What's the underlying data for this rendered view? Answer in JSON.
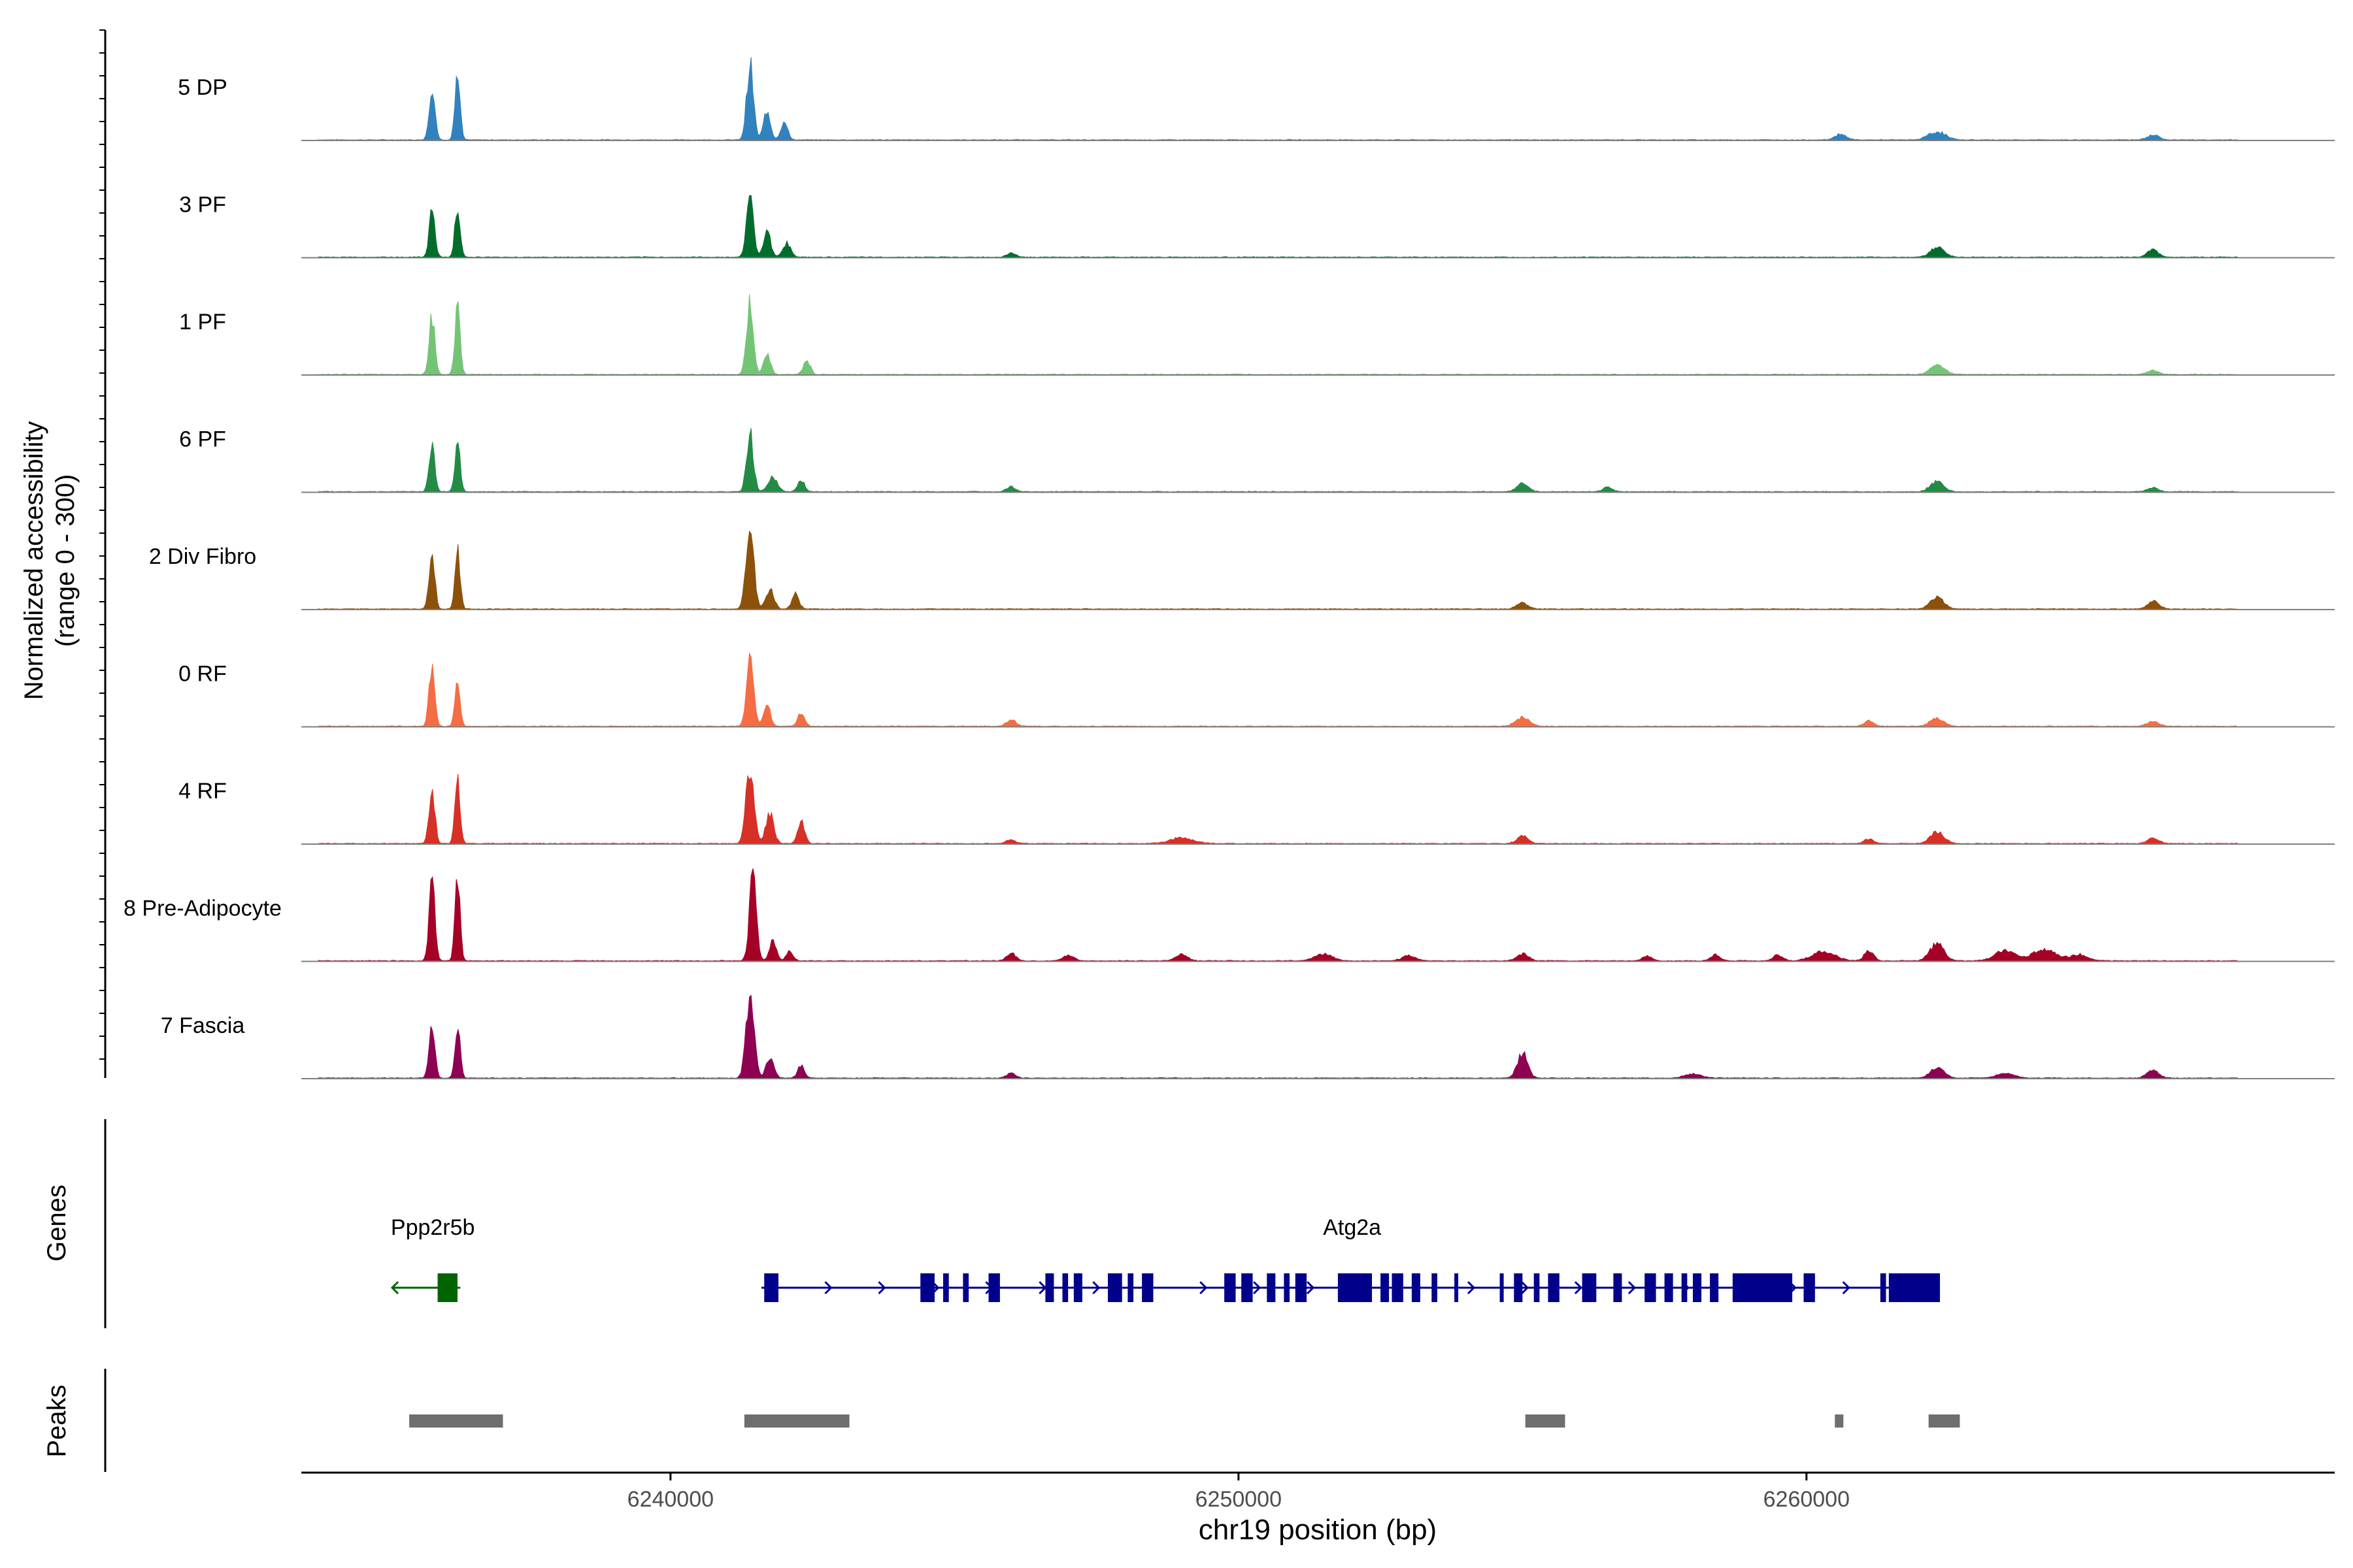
{
  "chart_data": {
    "type": "area",
    "title": "",
    "chromosome": "chr19",
    "xlabel": "chr19 position (bp)",
    "ylabel_line1": "Normalized accessibility",
    "ylabel_line2": "(range 0 - 300)",
    "y_range": [
      0,
      300
    ],
    "x_range": [
      6233500,
      6269300
    ],
    "x_ticks": [
      6240000,
      6250000,
      6260000
    ],
    "x_tick_labels": [
      "6240000",
      "6250000",
      "6260000"
    ],
    "genes_label": "Genes",
    "peaks_label": "Peaks",
    "colors": {
      "axis": "#000000",
      "baseline": "#7f7f7f",
      "peak_bar": "#6e6e6e",
      "gene_minus": "#006400",
      "gene_plus": "#00008b"
    },
    "tracks": [
      {
        "name": "5 DP",
        "color": "#3182bd",
        "peaks": [
          [
            6235800,
            0.55,
            50
          ],
          [
            6236250,
            0.62,
            45
          ],
          [
            6241400,
            0.75,
            60
          ],
          [
            6241700,
            0.3,
            60
          ],
          [
            6242000,
            0.18,
            60
          ],
          [
            6262300,
            0.08,
            150
          ],
          [
            6260600,
            0.06,
            100
          ],
          [
            6266100,
            0.05,
            100
          ]
        ]
      },
      {
        "name": "3 PF",
        "color": "#006d2c",
        "peaks": [
          [
            6235800,
            0.47,
            50
          ],
          [
            6236250,
            0.55,
            45
          ],
          [
            6241400,
            0.66,
            60
          ],
          [
            6241700,
            0.28,
            60
          ],
          [
            6242050,
            0.14,
            70
          ],
          [
            6246000,
            0.04,
            80
          ],
          [
            6262300,
            0.1,
            120
          ],
          [
            6266100,
            0.07,
            100
          ]
        ]
      },
      {
        "name": "1 PF",
        "color": "#74c476",
        "peaks": [
          [
            6235800,
            0.6,
            50
          ],
          [
            6236250,
            0.7,
            45
          ],
          [
            6241400,
            0.7,
            60
          ],
          [
            6241700,
            0.2,
            60
          ],
          [
            6242400,
            0.14,
            60
          ],
          [
            6262300,
            0.1,
            120
          ],
          [
            6266100,
            0.04,
            100
          ]
        ]
      },
      {
        "name": "6 PF",
        "color": "#238b45",
        "peaks": [
          [
            6235800,
            0.45,
            50
          ],
          [
            6236250,
            0.52,
            45
          ],
          [
            6241400,
            0.58,
            60
          ],
          [
            6241800,
            0.15,
            80
          ],
          [
            6242300,
            0.12,
            60
          ],
          [
            6246000,
            0.05,
            80
          ],
          [
            6255000,
            0.08,
            100
          ],
          [
            6256500,
            0.05,
            80
          ],
          [
            6262300,
            0.1,
            120
          ],
          [
            6266100,
            0.04,
            100
          ]
        ]
      },
      {
        "name": "2 Div Fibro",
        "color": "#8c510a",
        "peaks": [
          [
            6235800,
            0.55,
            50
          ],
          [
            6236250,
            0.6,
            45
          ],
          [
            6241400,
            0.75,
            70
          ],
          [
            6241750,
            0.2,
            70
          ],
          [
            6242200,
            0.15,
            60
          ],
          [
            6255000,
            0.06,
            100
          ],
          [
            6262300,
            0.12,
            120
          ],
          [
            6266100,
            0.08,
            100
          ]
        ]
      },
      {
        "name": "0 RF",
        "color": "#f46d43",
        "peaks": [
          [
            6235800,
            0.62,
            50
          ],
          [
            6236250,
            0.48,
            45
          ],
          [
            6241400,
            0.78,
            60
          ],
          [
            6241700,
            0.22,
            60
          ],
          [
            6242300,
            0.14,
            60
          ],
          [
            6246000,
            0.07,
            80
          ],
          [
            6255000,
            0.09,
            120
          ],
          [
            6261100,
            0.06,
            80
          ],
          [
            6262300,
            0.08,
            120
          ],
          [
            6266100,
            0.05,
            100
          ]
        ]
      },
      {
        "name": "4 RF",
        "color": "#d73027",
        "peaks": [
          [
            6235800,
            0.55,
            50
          ],
          [
            6236250,
            0.62,
            45
          ],
          [
            6241400,
            0.75,
            70
          ],
          [
            6241750,
            0.3,
            70
          ],
          [
            6242300,
            0.22,
            60
          ],
          [
            6246000,
            0.04,
            80
          ],
          [
            6249000,
            0.06,
            200
          ],
          [
            6255000,
            0.07,
            100
          ],
          [
            6261100,
            0.05,
            80
          ],
          [
            6262300,
            0.12,
            120
          ],
          [
            6266100,
            0.05,
            100
          ]
        ]
      },
      {
        "name": "8 Pre-Adipocyte",
        "color": "#a50026",
        "peaks": [
          [
            6235800,
            0.8,
            50
          ],
          [
            6236250,
            0.8,
            45
          ],
          [
            6241450,
            0.9,
            60
          ],
          [
            6241800,
            0.2,
            60
          ],
          [
            6242100,
            0.1,
            60
          ],
          [
            6246000,
            0.08,
            80
          ],
          [
            6247000,
            0.05,
            100
          ],
          [
            6249000,
            0.06,
            100
          ],
          [
            6251500,
            0.07,
            150
          ],
          [
            6253000,
            0.05,
            120
          ],
          [
            6255000,
            0.07,
            100
          ],
          [
            6257200,
            0.05,
            80
          ],
          [
            6258400,
            0.06,
            80
          ],
          [
            6259500,
            0.06,
            80
          ],
          [
            6260300,
            0.09,
            200
          ],
          [
            6261100,
            0.1,
            80
          ],
          [
            6262300,
            0.18,
            120
          ],
          [
            6263500,
            0.1,
            180
          ],
          [
            6264200,
            0.12,
            200
          ],
          [
            6264800,
            0.06,
            150
          ]
        ]
      },
      {
        "name": "7 Fascia",
        "color": "#8e0152",
        "peaks": [
          [
            6235800,
            0.55,
            50
          ],
          [
            6236250,
            0.52,
            45
          ],
          [
            6241400,
            0.85,
            70
          ],
          [
            6241750,
            0.2,
            70
          ],
          [
            6242300,
            0.12,
            60
          ],
          [
            6246000,
            0.05,
            80
          ],
          [
            6255000,
            0.25,
            90
          ],
          [
            6262300,
            0.1,
            120
          ],
          [
            6266100,
            0.08,
            100
          ],
          [
            6263500,
            0.05,
            150
          ],
          [
            6258000,
            0.04,
            150
          ]
        ]
      }
    ],
    "genes": [
      {
        "name": "Ppp2r5b",
        "strand": "-",
        "start": 6235100,
        "end": 6236300,
        "exons": [
          [
            6235900,
            6236250
          ]
        ]
      },
      {
        "name": "Atg2a",
        "strand": "+",
        "start": 6241600,
        "end": 6262350,
        "exons": [
          [
            6241650,
            6241900
          ],
          [
            6244400,
            6244650
          ],
          [
            6244800,
            6244900
          ],
          [
            6245150,
            6245250
          ],
          [
            6245600,
            6245800
          ],
          [
            6246600,
            6246750
          ],
          [
            6246900,
            6247000
          ],
          [
            6247100,
            6247250
          ],
          [
            6247700,
            6247950
          ],
          [
            6248050,
            6248150
          ],
          [
            6248300,
            6248500
          ],
          [
            6249750,
            6249950
          ],
          [
            6250050,
            6250250
          ],
          [
            6250500,
            6250650
          ],
          [
            6250800,
            6250900
          ],
          [
            6251000,
            6251200
          ],
          [
            6251750,
            6252350
          ],
          [
            6252500,
            6252650
          ],
          [
            6252700,
            6252900
          ],
          [
            6253050,
            6253200
          ],
          [
            6253400,
            6253500
          ],
          [
            6253800,
            6253850
          ],
          [
            6254600,
            6254650
          ],
          [
            6254850,
            6255000
          ],
          [
            6255200,
            6255300
          ],
          [
            6255450,
            6255650
          ],
          [
            6256050,
            6256300
          ],
          [
            6256600,
            6256750
          ],
          [
            6257150,
            6257350
          ],
          [
            6257500,
            6257650
          ],
          [
            6257800,
            6257900
          ],
          [
            6258000,
            6258150
          ],
          [
            6258300,
            6258450
          ],
          [
            6258700,
            6259750
          ],
          [
            6259950,
            6260150
          ],
          [
            6261300,
            6261400
          ],
          [
            6261450,
            6262350
          ]
        ]
      }
    ],
    "peak_regions": [
      [
        6235400,
        6237050
      ],
      [
        6241300,
        6243150
      ],
      [
        6255050,
        6255750
      ],
      [
        6260500,
        6260650
      ],
      [
        6262150,
        6262700
      ]
    ]
  }
}
